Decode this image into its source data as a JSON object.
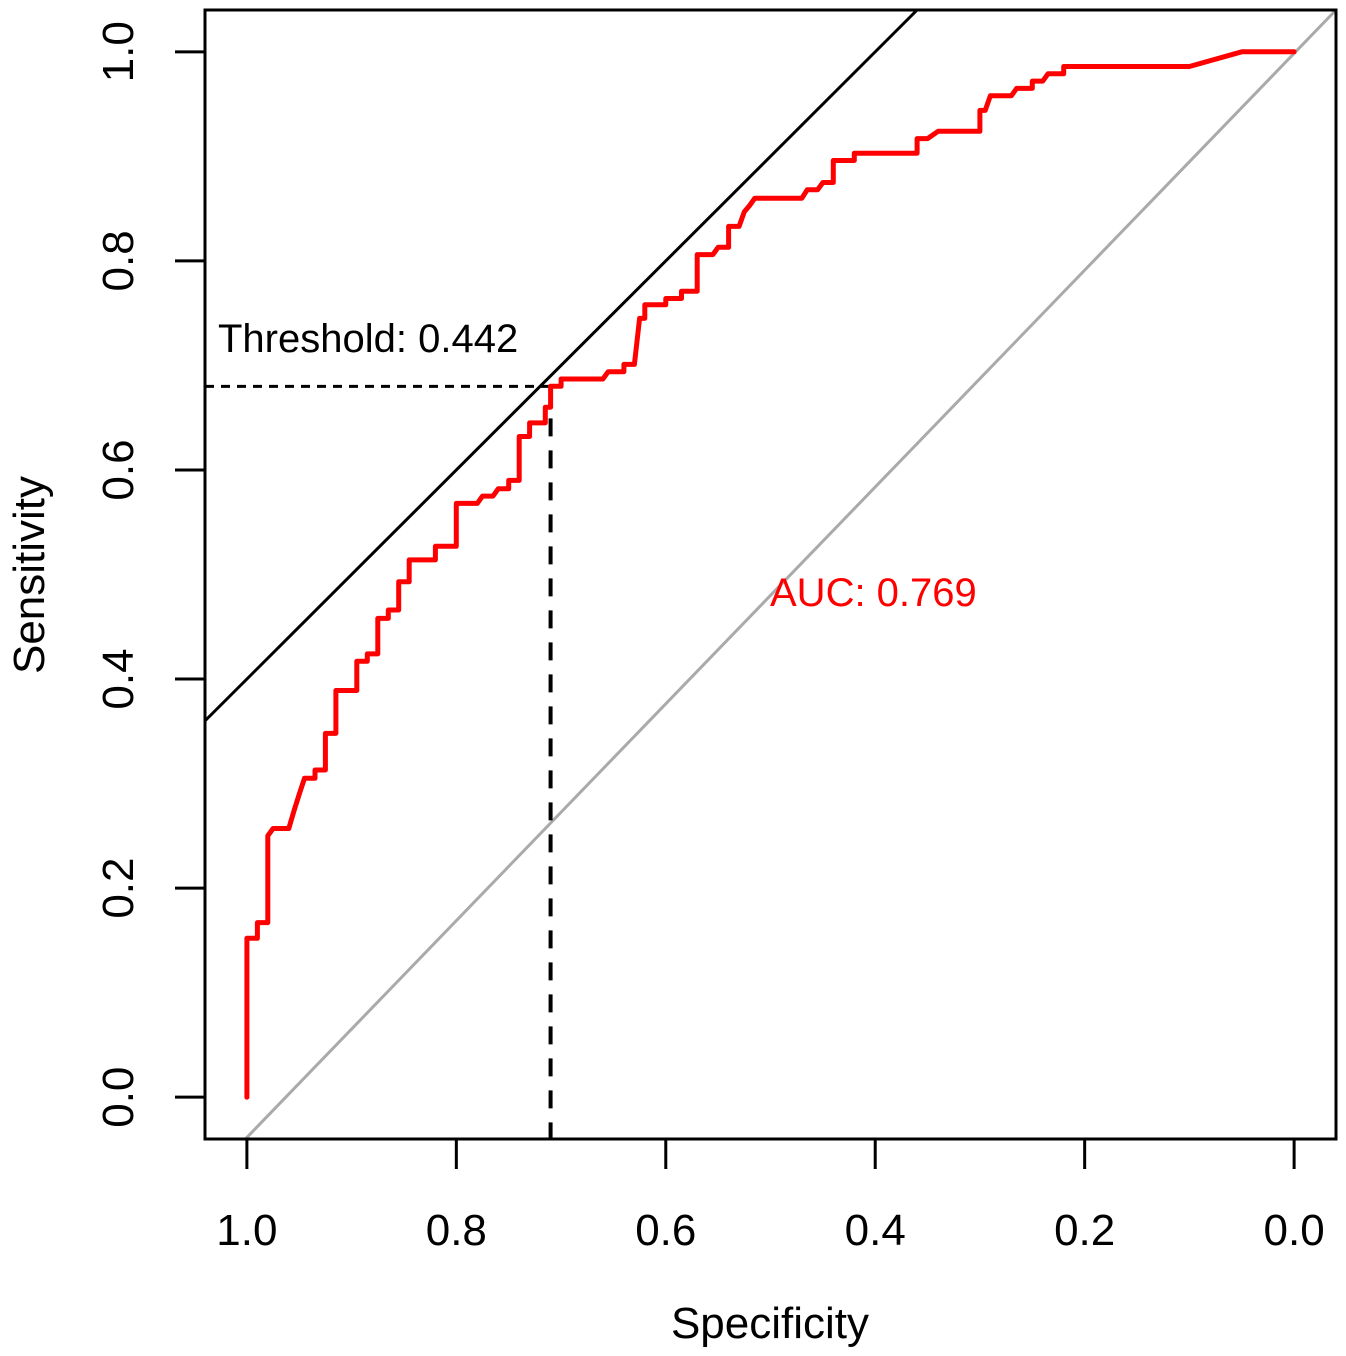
{
  "chart_data": {
    "type": "line",
    "xlabel": "Specificity",
    "ylabel": "Sensitivity",
    "xlim": [
      1.04,
      -0.04
    ],
    "ylim": [
      -0.04,
      1.04
    ],
    "x_ticks": [
      1.0,
      0.8,
      0.6,
      0.4,
      0.2,
      0.0
    ],
    "x_tick_labels": [
      "1.0",
      "0.8",
      "0.6",
      "0.4",
      "0.2",
      "0.0"
    ],
    "y_ticks": [
      0.0,
      0.2,
      0.4,
      0.6,
      0.8,
      1.0
    ],
    "y_tick_labels": [
      "0.0",
      "0.2",
      "0.4",
      "0.6",
      "0.8",
      "1.0"
    ],
    "threshold_label": "Threshold: 0.442",
    "auc_label": "AUC: 0.769",
    "colors": {
      "roc": "#ff0000",
      "diagonal": "#aaaaaa",
      "tangent": "#000000",
      "auc_text": "#ff0000"
    },
    "threshold_point": {
      "specificity": 0.71,
      "sensitivity": 0.68
    },
    "tangent_line": {
      "x": [
        1.04,
        0.36
      ],
      "y": [
        0.36,
        1.04
      ]
    },
    "series": [
      {
        "name": "ROC",
        "specificity": [
          1.0,
          1.0,
          0.99,
          0.99,
          0.98,
          0.98,
          0.975,
          0.97,
          0.96,
          0.955,
          0.95,
          0.945,
          0.935,
          0.935,
          0.925,
          0.925,
          0.915,
          0.915,
          0.895,
          0.895,
          0.885,
          0.885,
          0.875,
          0.875,
          0.865,
          0.865,
          0.855,
          0.855,
          0.845,
          0.845,
          0.82,
          0.82,
          0.8,
          0.8,
          0.78,
          0.775,
          0.765,
          0.76,
          0.75,
          0.75,
          0.74,
          0.74,
          0.73,
          0.73,
          0.715,
          0.715,
          0.71,
          0.71,
          0.7,
          0.7,
          0.685,
          0.68,
          0.66,
          0.655,
          0.64,
          0.64,
          0.63,
          0.625,
          0.62,
          0.62,
          0.6,
          0.6,
          0.585,
          0.585,
          0.57,
          0.57,
          0.555,
          0.55,
          0.54,
          0.54,
          0.53,
          0.525,
          0.52,
          0.515,
          0.47,
          0.465,
          0.455,
          0.45,
          0.44,
          0.44,
          0.42,
          0.42,
          0.36,
          0.36,
          0.35,
          0.34,
          0.3,
          0.3,
          0.295,
          0.29,
          0.29,
          0.27,
          0.265,
          0.25,
          0.25,
          0.24,
          0.235,
          0.22,
          0.22,
          0.1,
          0.05,
          0.0
        ],
        "sensitivity": [
          0.0,
          0.152,
          0.152,
          0.167,
          0.167,
          0.25,
          0.257,
          0.257,
          0.257,
          0.274,
          0.29,
          0.305,
          0.305,
          0.313,
          0.313,
          0.348,
          0.348,
          0.389,
          0.389,
          0.417,
          0.417,
          0.424,
          0.424,
          0.458,
          0.458,
          0.466,
          0.466,
          0.493,
          0.493,
          0.514,
          0.514,
          0.527,
          0.527,
          0.568,
          0.568,
          0.575,
          0.575,
          0.582,
          0.582,
          0.59,
          0.59,
          0.632,
          0.632,
          0.645,
          0.645,
          0.66,
          0.66,
          0.68,
          0.68,
          0.687,
          0.687,
          0.687,
          0.687,
          0.694,
          0.694,
          0.701,
          0.701,
          0.745,
          0.745,
          0.758,
          0.758,
          0.764,
          0.764,
          0.771,
          0.771,
          0.806,
          0.806,
          0.813,
          0.813,
          0.833,
          0.833,
          0.847,
          0.853,
          0.86,
          0.86,
          0.868,
          0.868,
          0.875,
          0.875,
          0.896,
          0.896,
          0.903,
          0.903,
          0.917,
          0.917,
          0.924,
          0.924,
          0.944,
          0.944,
          0.958,
          0.958,
          0.958,
          0.965,
          0.965,
          0.972,
          0.972,
          0.979,
          0.979,
          0.986,
          0.986,
          1.0,
          1.0
        ]
      }
    ]
  }
}
